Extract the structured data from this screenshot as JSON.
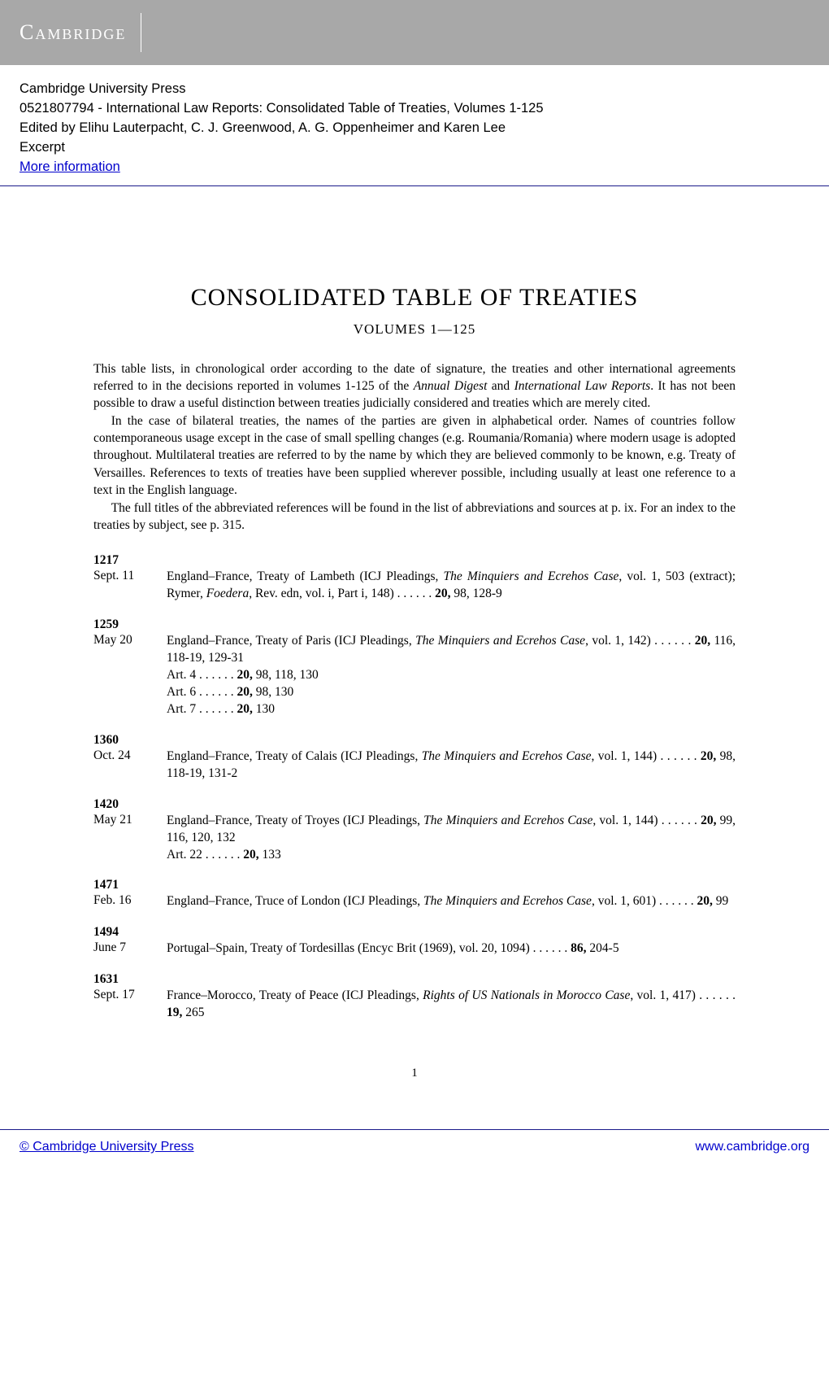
{
  "header": {
    "brand": "Cambridge"
  },
  "meta": {
    "publisher": "Cambridge University Press",
    "isbn_title": "0521807794 - International Law Reports: Consolidated Table of Treaties, Volumes 1-125",
    "editors": "Edited by Elihu Lauterpacht, C. J. Greenwood, A. G. Oppenheimer and Karen Lee",
    "section": "Excerpt",
    "more_info": "More information"
  },
  "title": "CONSOLIDATED TABLE OF TREATIES",
  "subtitle": "VOLUMES 1—125",
  "intro": {
    "p1a": "This table lists, in chronological order according to the date of signature, the treaties and other international agreements referred to in the decisions reported in volumes 1-125 of the ",
    "p1_i1": "Annual Digest",
    "p1b": " and ",
    "p1_i2": "International Law Reports",
    "p1c": ". It has not been possible to draw a useful distinction between treaties judicially considered and treaties which are merely cited.",
    "p2": "In the case of bilateral treaties, the names of the parties are given in alphabetical order. Names of countries follow contemporaneous usage except in the case of small spelling changes (e.g. Roumania/Romania) where modern usage is adopted throughout. Multilateral treaties are referred to by the name by which they are believed commonly to be known, e.g. Treaty of Versailles. References to texts of treaties have been supplied wherever possible, including usually at least one reference to a text in the English language.",
    "p3": "The full titles of the abbreviated references will be found in the list of abbreviations and sources at p. ix. For an index to the treaties by subject, see p. 315."
  },
  "entries": [
    {
      "year": "1217",
      "date": "Sept. 11",
      "pre": "England–France, Treaty of Lambeth (ICJ Pleadings, ",
      "ital1": "The Minquiers and Ecrehos Case",
      "mid1": ", vol. 1, 503 (extract); Rymer, ",
      "ital2": "Foedera",
      "mid2": ", Rev. edn, vol. i, Part i, 148) . . . . . . ",
      "bold": "20,",
      "post": " 98, 128-9",
      "spread": true,
      "subs": []
    },
    {
      "year": "1259",
      "date": "May 20",
      "pre": "England–France, Treaty of Paris (ICJ Pleadings, ",
      "ital1": "The Minquiers and Ecrehos Case",
      "mid1": ", vol. 1, 142) . . . . . . ",
      "ital2": "",
      "mid2": "",
      "bold": "20,",
      "post": " 116, 118-19, 129-31",
      "spread": false,
      "subs": [
        {
          "pre": "Art. 4 . . . . . . ",
          "bold": "20,",
          "post": " 98, 118, 130"
        },
        {
          "pre": "Art. 6 . . . . . . ",
          "bold": "20,",
          "post": " 98, 130"
        },
        {
          "pre": "Art. 7 . . . . . . ",
          "bold": "20,",
          "post": " 130"
        }
      ]
    },
    {
      "year": "1360",
      "date": "Oct. 24",
      "pre": "England–France, Treaty of Calais (ICJ Pleadings, ",
      "ital1": "The Minquiers and Ecrehos Case",
      "mid1": ", vol. 1, 144) . . . . . . ",
      "ital2": "",
      "mid2": "",
      "bold": "20,",
      "post": " 98, 118-19, 131-2",
      "spread": false,
      "subs": []
    },
    {
      "year": "1420",
      "date": "May 21",
      "pre": "England–France, Treaty of Troyes (ICJ Pleadings, ",
      "ital1": "The Minquiers and Ecrehos Case",
      "mid1": ", vol. 1, 144) . . . . . . ",
      "ital2": "",
      "mid2": "",
      "bold": "20,",
      "post": " 99, 116, 120, 132",
      "spread": false,
      "subs": [
        {
          "pre": "Art. 22 . . . . . . ",
          "bold": "20,",
          "post": " 133"
        }
      ]
    },
    {
      "year": "1471",
      "date": "Feb. 16",
      "pre": "England–France, Truce of London (ICJ Pleadings, ",
      "ital1": "The Minquiers and Ecrehos Case",
      "mid1": ", vol. 1, 601) . . . . . . ",
      "ital2": "",
      "mid2": "",
      "bold": "20,",
      "post": " 99",
      "spread": false,
      "subs": []
    },
    {
      "year": "1494",
      "date": "June 7",
      "pre": "Portugal–Spain, Treaty of Tordesillas (Encyc Brit (1969), vol. 20, 1094) . . . . . . ",
      "ital1": "",
      "mid1": "",
      "ital2": "",
      "mid2": "",
      "bold": "86,",
      "post": " 204-5",
      "spread": true,
      "subs": []
    },
    {
      "year": "1631",
      "date": "Sept. 17",
      "pre": "France–Morocco, Treaty of Peace (ICJ Pleadings, ",
      "ital1": "Rights of US Nationals in Morocco Case",
      "mid1": ", vol. 1, 417) . . . . . . ",
      "ital2": "",
      "mid2": "",
      "bold": "19,",
      "post": " 265",
      "spread": false,
      "subs": []
    }
  ],
  "page_number": "1",
  "footer": {
    "left": "© Cambridge University Press",
    "right": "www.cambridge.org"
  }
}
